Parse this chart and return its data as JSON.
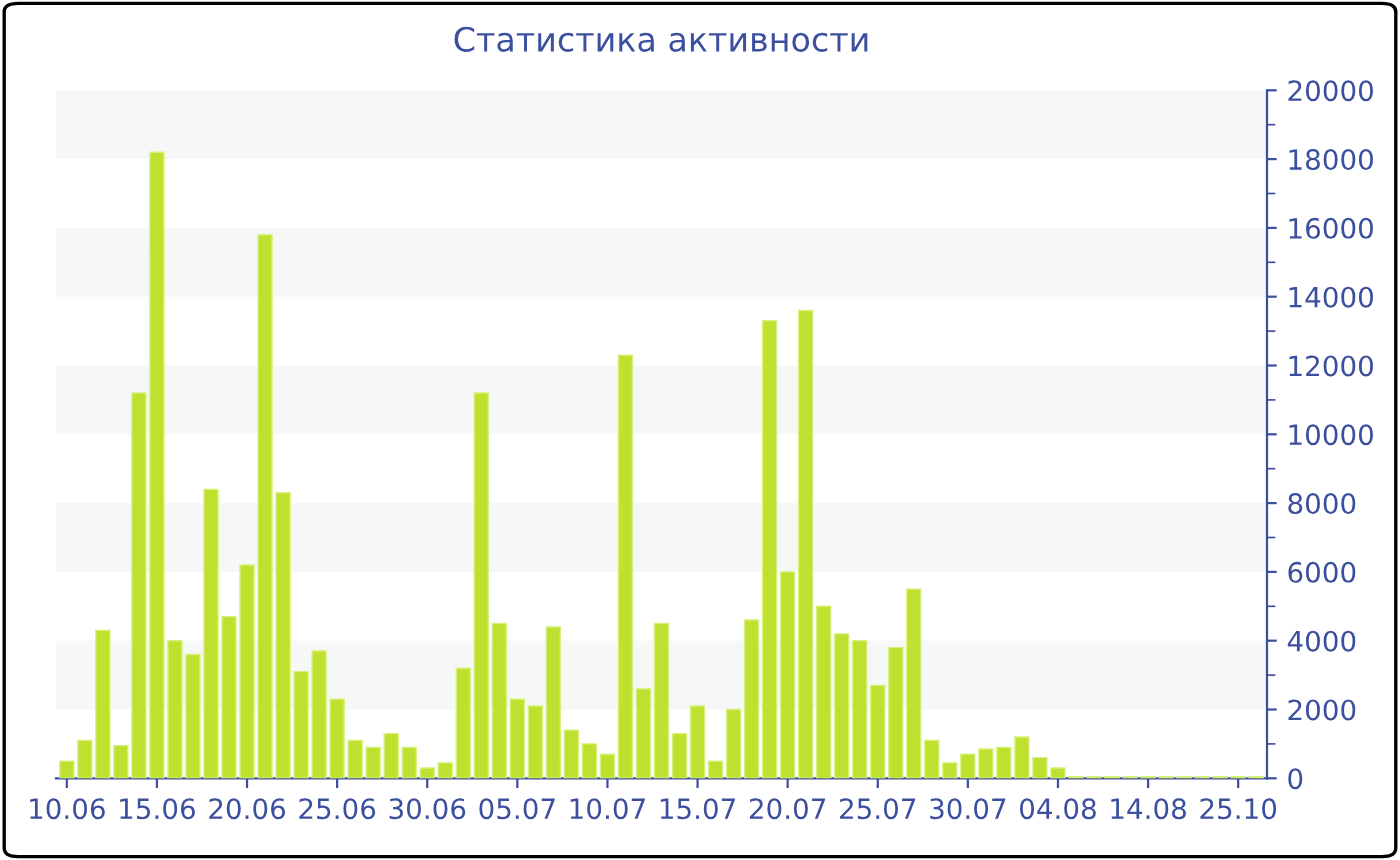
{
  "chart_data": {
    "type": "bar",
    "title": "Статистика активности",
    "categories": [
      "10.06",
      null,
      null,
      null,
      null,
      "15.06",
      null,
      null,
      null,
      null,
      "20.06",
      null,
      null,
      null,
      null,
      "25.06",
      null,
      null,
      null,
      null,
      "30.06",
      null,
      null,
      null,
      null,
      "05.07",
      null,
      null,
      null,
      null,
      "10.07",
      null,
      null,
      null,
      null,
      "15.07",
      null,
      null,
      null,
      null,
      "20.07",
      null,
      null,
      null,
      null,
      "25.07",
      null,
      null,
      null,
      null,
      "30.07",
      null,
      null,
      null,
      null,
      "04.08",
      null,
      null,
      null,
      null,
      "14.08",
      null,
      null,
      null,
      null,
      "25.10",
      null
    ],
    "values": [
      500,
      1100,
      4300,
      950,
      11200,
      18200,
      4000,
      3600,
      8400,
      4700,
      6200,
      15800,
      8300,
      3100,
      3700,
      2300,
      1100,
      900,
      1300,
      900,
      300,
      450,
      3200,
      11200,
      4500,
      2300,
      2100,
      4400,
      1400,
      1000,
      700,
      12300,
      2600,
      4500,
      1300,
      2100,
      500,
      2000,
      4600,
      13300,
      6000,
      13600,
      5000,
      4200,
      4000,
      2700,
      3800,
      5500,
      1100,
      450,
      700,
      850,
      900,
      1200,
      600,
      300,
      50,
      50,
      50,
      50,
      50,
      50,
      50,
      50,
      50,
      50,
      50
    ],
    "color": "#bde12e",
    "ylim": [
      0,
      20000
    ],
    "yticks": [
      0,
      2000,
      4000,
      6000,
      8000,
      10000,
      12000,
      14000,
      16000,
      18000,
      20000
    ],
    "bands": [
      {
        "axis": "y",
        "from": 2000,
        "to": 4000,
        "color": "#f7f7f7"
      },
      {
        "axis": "y",
        "from": 6000,
        "to": 8000,
        "color": "#f7f7f7"
      },
      {
        "axis": "y",
        "from": 10000,
        "to": 12000,
        "color": "#f7f7f7"
      },
      {
        "axis": "y",
        "from": 14000,
        "to": 16000,
        "color": "#f7f7f7"
      },
      {
        "axis": "y",
        "from": 18000,
        "to": 20000,
        "color": "#f7f7f7"
      }
    ]
  }
}
